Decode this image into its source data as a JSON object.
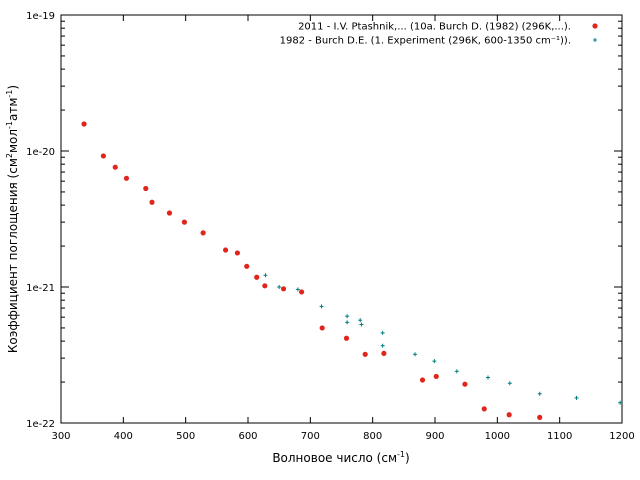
{
  "chart_data": {
    "type": "scatter",
    "title": "",
    "xlabel": {
      "text": "Волновое число (см",
      "sup": "-1",
      "after": ")"
    },
    "ylabel": {
      "parts": [
        {
          "t": "Коэффициент поглощения (см"
        },
        {
          "t": "2",
          "sup": true
        },
        {
          "t": "мол"
        },
        {
          "t": "-1",
          "sup": true
        },
        {
          "t": "атм"
        },
        {
          "t": "-1",
          "sup": true
        },
        {
          "t": ")"
        }
      ]
    },
    "xlim": [
      300,
      1200
    ],
    "ylim": [
      1e-22,
      1e-19
    ],
    "y_scale": "log",
    "grid": false,
    "legend_position": "top-right",
    "x_ticks": [
      {
        "value": 300,
        "label": "300"
      },
      {
        "value": 400,
        "label": "400"
      },
      {
        "value": 500,
        "label": "500"
      },
      {
        "value": 600,
        "label": "600"
      },
      {
        "value": 700,
        "label": "700"
      },
      {
        "value": 800,
        "label": "800"
      },
      {
        "value": 900,
        "label": "900"
      },
      {
        "value": 1000,
        "label": "1000"
      },
      {
        "value": 1100,
        "label": "1100"
      },
      {
        "value": 1200,
        "label": "1200"
      }
    ],
    "y_ticks": [
      {
        "value": 1e-22,
        "label": "1e-22"
      },
      {
        "value": 1e-21,
        "label": "1e-21"
      },
      {
        "value": 1e-20,
        "label": "1e-20"
      },
      {
        "value": 1e-19,
        "label": "1e-19"
      }
    ],
    "series": [
      {
        "name": "2011 - I.V. Ptashnik,... (10a. Burch D. (1982) (296K,...).",
        "marker": "circle",
        "color": "#e0261c",
        "x": [
          337,
          368,
          387,
          405,
          436,
          446,
          474,
          498,
          528,
          564,
          583,
          598,
          614,
          627,
          657,
          686,
          719,
          758,
          788,
          818,
          880,
          902,
          948,
          979,
          1019,
          1068
        ],
        "y": [
          1.58e-20,
          9.2e-21,
          7.6e-21,
          6.3e-21,
          5.3e-21,
          4.2e-21,
          3.5e-21,
          3e-21,
          2.5e-21,
          1.87e-21,
          1.78e-21,
          1.42e-21,
          1.18e-21,
          1.02e-21,
          9.7e-22,
          9.2e-22,
          5e-22,
          4.2e-22,
          3.2e-22,
          3.25e-22,
          2.07e-22,
          2.2e-22,
          1.93e-22,
          1.27e-22,
          1.15e-22,
          1.1e-22
        ]
      },
      {
        "name": "1982 - Burch D.E. (1. Experiment (296K, 600-1350 cm⁻¹)).",
        "marker": "plus",
        "color": "#007d7d",
        "x": [
          628,
          650,
          680,
          718,
          759,
          759,
          780,
          782,
          816,
          816,
          868,
          899,
          935,
          985,
          1020,
          1068,
          1127,
          1197
        ],
        "y": [
          1.22e-21,
          1e-21,
          9.6e-22,
          7.2e-22,
          6.1e-22,
          5.5e-22,
          5.7e-22,
          5.3e-22,
          4.6e-22,
          3.7e-22,
          3.2e-22,
          2.85e-22,
          2.4e-22,
          2.16e-22,
          1.96e-22,
          1.64e-22,
          1.53e-22,
          1.41e-22
        ]
      }
    ]
  }
}
